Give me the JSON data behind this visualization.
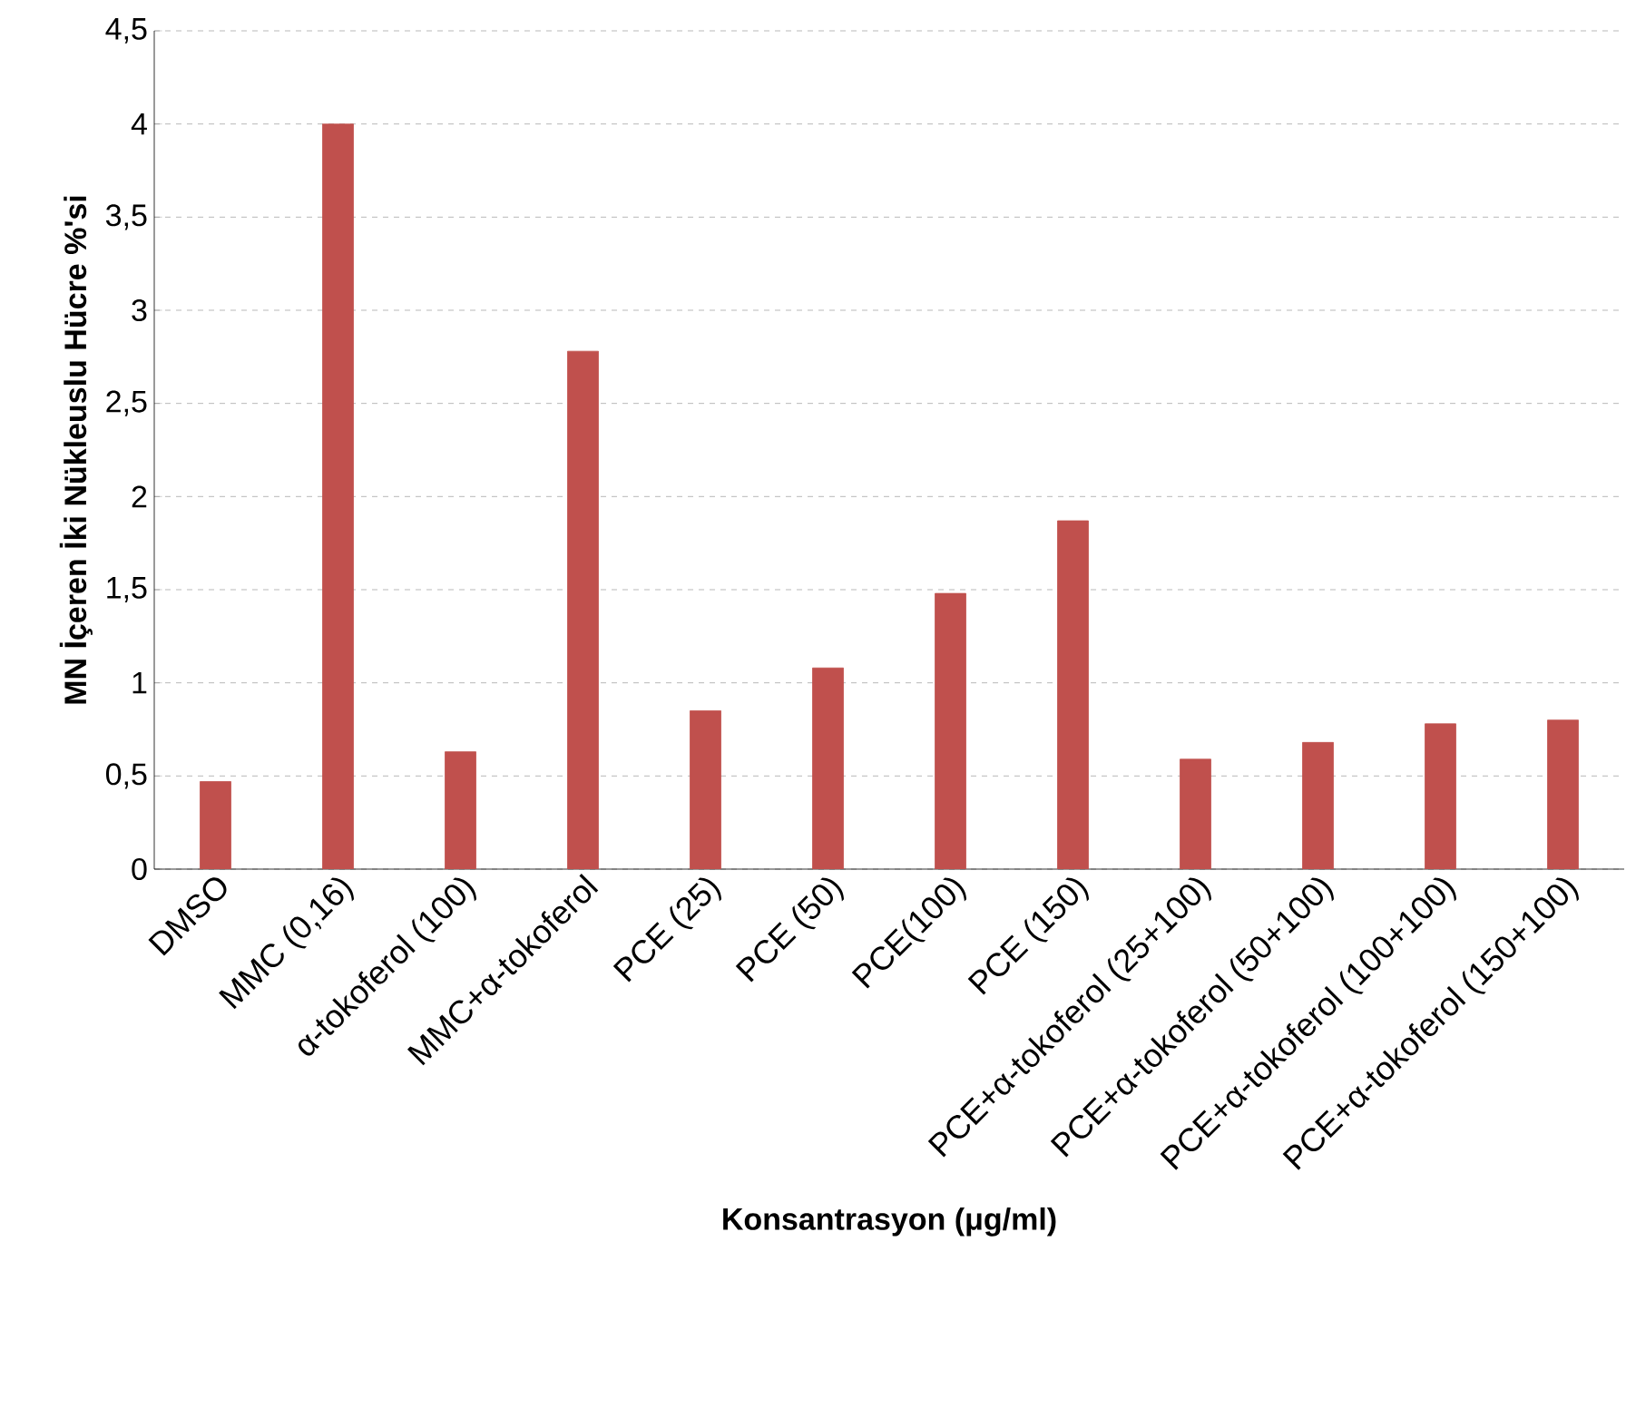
{
  "chart_data": {
    "type": "bar",
    "xlabel": "Konsantrasyon (μg/ml)",
    "ylabel": "MN İçeren İki Nükleuslu  Hücre %'si",
    "categories": [
      "DMSO",
      "MMC (0,16)",
      "α-tokoferol (100)",
      "MMC+α-tokoferol",
      "PCE (25)",
      "PCE (50)",
      "PCE(100)",
      "PCE (150)",
      "PCE+α-tokoferol (25+100)",
      "PCE+α-tokoferol (50+100)",
      "PCE+α-tokoferol (100+100)",
      "PCE+α-tokoferol (150+100)"
    ],
    "values": [
      0.47,
      4.0,
      0.63,
      2.78,
      0.85,
      1.08,
      1.48,
      1.87,
      0.59,
      0.68,
      0.78,
      0.8
    ],
    "color": "#c0504d",
    "ylim": [
      0,
      4.5
    ],
    "yticks": [
      {
        "value": 0,
        "label": "0"
      },
      {
        "value": 0.5,
        "label": "0,5"
      },
      {
        "value": 1,
        "label": "1"
      },
      {
        "value": 1.5,
        "label": "1,5"
      },
      {
        "value": 2,
        "label": "2"
      },
      {
        "value": 2.5,
        "label": "2,5"
      },
      {
        "value": 3,
        "label": "3"
      },
      {
        "value": 3.5,
        "label": "3,5"
      },
      {
        "value": 4,
        "label": "4"
      },
      {
        "value": 4.5,
        "label": "4,5"
      }
    ],
    "grid": "y"
  }
}
